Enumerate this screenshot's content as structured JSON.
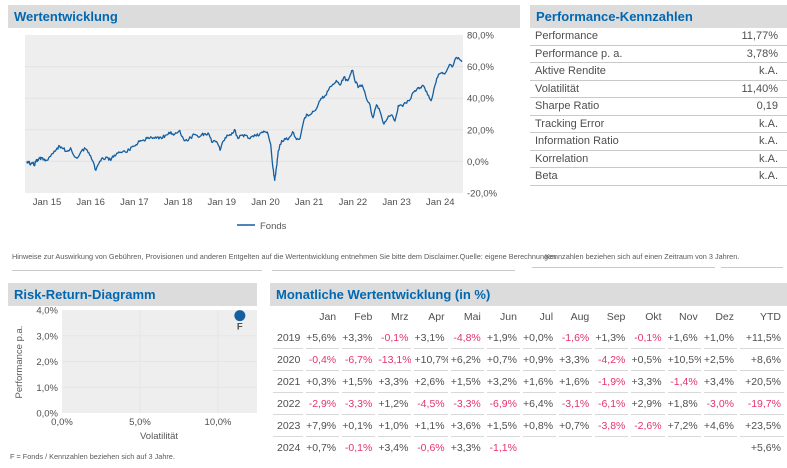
{
  "colors": {
    "accent_blue": "#0068b2",
    "line_blue": "#145fa0",
    "negative_red": "#e2336f",
    "text_gray": "#4f4f51",
    "header_bg": "#dcdcdd",
    "plot_bg": "#eeeeef",
    "grid": "#e2e2e3"
  },
  "panels": {
    "performance_chart": {
      "title": "Wertentwicklung",
      "legend_label": "Fonds",
      "disclaimer": "Hinweise zur Auswirkung von Gebühren, Provisionen und anderen Entgelten auf die Wertentwicklung entnehmen Sie bitte dem Disclaimer.",
      "source": "Quelle: eigene Berechnungen"
    },
    "kennzahlen": {
      "title": "Performance-Kennzahlen",
      "note": "Kennzahlen beziehen sich auf einen Zeitraum von 3 Jahren.",
      "rows": [
        {
          "label": "Performance",
          "value": "11,77%"
        },
        {
          "label": "Performance p. a.",
          "value": "3,78%"
        },
        {
          "label": "Aktive Rendite",
          "value": "k.A."
        },
        {
          "label": "Volatilität",
          "value": "11,40%"
        },
        {
          "label": "Sharpe Ratio",
          "value": "0,19"
        },
        {
          "label": "Tracking Error",
          "value": "k.A."
        },
        {
          "label": "Information Ratio",
          "value": "k.A."
        },
        {
          "label": "Korrelation",
          "value": "k.A."
        },
        {
          "label": "Beta",
          "value": "k.A."
        }
      ]
    },
    "risk_return": {
      "title": "Risk-Return-Diagramm",
      "footnote": "F = Fonds / Kennzahlen beziehen sich auf 3 Jahre."
    },
    "monthly": {
      "title": "Monatliche Wertentwicklung (in %)",
      "columns": [
        "",
        "Jan",
        "Feb",
        "Mrz",
        "Apr",
        "Mai",
        "Jun",
        "Jul",
        "Aug",
        "Sep",
        "Okt",
        "Nov",
        "Dez",
        "YTD"
      ],
      "rows": [
        {
          "year": "2019",
          "values": [
            "+5,6%",
            "+3,3%",
            "-0,1%",
            "+3,1%",
            "-4,8%",
            "+1,9%",
            "+0,0%",
            "-1,6%",
            "+1,3%",
            "-0,1%",
            "+1,6%",
            "+1,0%",
            "+11,5%"
          ]
        },
        {
          "year": "2020",
          "values": [
            "-0,4%",
            "-6,7%",
            "-13,1%",
            "+10,7%",
            "+6,2%",
            "+0,7%",
            "+0,9%",
            "+3,3%",
            "-4,2%",
            "+0,5%",
            "+10,5%",
            "+2,5%",
            "+8,6%"
          ]
        },
        {
          "year": "2021",
          "values": [
            "+0,3%",
            "+1,5%",
            "+3,3%",
            "+2,6%",
            "+1,5%",
            "+3,2%",
            "+1,6%",
            "+1,6%",
            "-1,9%",
            "+3,3%",
            "-1,4%",
            "+3,4%",
            "+20,5%"
          ]
        },
        {
          "year": "2022",
          "values": [
            "-2,9%",
            "-3,3%",
            "+1,2%",
            "-4,5%",
            "-3,3%",
            "-6,9%",
            "+6,4%",
            "-3,1%",
            "-6,1%",
            "+2,9%",
            "+1,8%",
            "-3,0%",
            "-19,7%"
          ]
        },
        {
          "year": "2023",
          "values": [
            "+7,9%",
            "+0,1%",
            "+1,0%",
            "+1,1%",
            "+3,6%",
            "+1,5%",
            "+0,8%",
            "+0,7%",
            "-3,8%",
            "-2,6%",
            "+7,2%",
            "+4,6%",
            "+23,5%"
          ]
        },
        {
          "year": "2024",
          "values": [
            "+0,7%",
            "-0,1%",
            "+3,4%",
            "-0,6%",
            "+3,3%",
            "-1,1%",
            "",
            "",
            "",
            "",
            "",
            "",
            "+5,6%"
          ]
        }
      ]
    }
  },
  "chart_data": [
    {
      "type": "line",
      "title": "Wertentwicklung",
      "xlabel": "",
      "ylabel": "",
      "legend_position": "bottom",
      "grid": true,
      "xlim": [
        2014.5,
        2024.58
      ],
      "ylim": [
        -20,
        80
      ],
      "y_ticks": [
        {
          "label": "80,0%",
          "v": 80
        },
        {
          "label": "60,0%",
          "v": 60
        },
        {
          "label": "40,0%",
          "v": 40
        },
        {
          "label": "20,0%",
          "v": 20
        },
        {
          "label": "0,0%",
          "v": 0
        },
        {
          "label": "-20,0%",
          "v": -20
        }
      ],
      "x_ticks": [
        {
          "label": "Jan 15",
          "t": 2015
        },
        {
          "label": "Jan 16",
          "t": 2016
        },
        {
          "label": "Jan 17",
          "t": 2017
        },
        {
          "label": "Jan 18",
          "t": 2018
        },
        {
          "label": "Jan 19",
          "t": 2019
        },
        {
          "label": "Jan 20",
          "t": 2020
        },
        {
          "label": "Jan 21",
          "t": 2021
        },
        {
          "label": "Jan 22",
          "t": 2022
        },
        {
          "label": "Jan 23",
          "t": 2023
        },
        {
          "label": "Jan 24",
          "t": 2024
        }
      ],
      "series": [
        {
          "name": "Fonds",
          "points": [
            [
              2014.54,
              0
            ],
            [
              2014.58,
              -0.8
            ],
            [
              2014.63,
              -1.8
            ],
            [
              2014.68,
              -0.5
            ],
            [
              2014.71,
              -2.8
            ],
            [
              2014.75,
              0.5
            ],
            [
              2014.79,
              1.2
            ],
            [
              2014.83,
              2.0
            ],
            [
              2014.88,
              2.3
            ],
            [
              2014.92,
              1.0
            ],
            [
              2014.96,
              0.3
            ],
            [
              2015.04,
              2.2
            ],
            [
              2015.12,
              5.0
            ],
            [
              2015.21,
              7.4
            ],
            [
              2015.29,
              9.6
            ],
            [
              2015.37,
              8.0
            ],
            [
              2015.46,
              6.4
            ],
            [
              2015.54,
              8.6
            ],
            [
              2015.62,
              3.4
            ],
            [
              2015.71,
              2.6
            ],
            [
              2015.79,
              6.6
            ],
            [
              2015.88,
              8.0
            ],
            [
              2015.96,
              5.4
            ],
            [
              2016.04,
              0.6
            ],
            [
              2016.12,
              -5.6
            ],
            [
              2016.21,
              0.2
            ],
            [
              2016.29,
              1.6
            ],
            [
              2016.37,
              2.6
            ],
            [
              2016.46,
              0.6
            ],
            [
              2016.54,
              4.0
            ],
            [
              2016.62,
              5.2
            ],
            [
              2016.71,
              5.6
            ],
            [
              2016.79,
              6.0
            ],
            [
              2016.88,
              7.2
            ],
            [
              2016.96,
              9.6
            ],
            [
              2017.04,
              10.6
            ],
            [
              2017.12,
              12.6
            ],
            [
              2017.21,
              13.6
            ],
            [
              2017.29,
              14.6
            ],
            [
              2017.37,
              15.6
            ],
            [
              2017.46,
              14.6
            ],
            [
              2017.54,
              15.6
            ],
            [
              2017.62,
              14.4
            ],
            [
              2017.71,
              16.6
            ],
            [
              2017.79,
              18.4
            ],
            [
              2017.88,
              17.4
            ],
            [
              2017.96,
              18.0
            ],
            [
              2018.04,
              19.6
            ],
            [
              2018.12,
              14.4
            ],
            [
              2018.21,
              13.0
            ],
            [
              2018.29,
              15.0
            ],
            [
              2018.37,
              17.0
            ],
            [
              2018.46,
              15.4
            ],
            [
              2018.54,
              17.0
            ],
            [
              2018.62,
              17.6
            ],
            [
              2018.71,
              17.0
            ],
            [
              2018.79,
              12.0
            ],
            [
              2018.88,
              12.6
            ],
            [
              2018.96,
              7.0
            ],
            [
              2019.04,
              13.0
            ],
            [
              2019.12,
              16.7
            ],
            [
              2019.21,
              16.6
            ],
            [
              2019.29,
              20.2
            ],
            [
              2019.37,
              14.4
            ],
            [
              2019.46,
              16.6
            ],
            [
              2019.54,
              16.6
            ],
            [
              2019.62,
              14.7
            ],
            [
              2019.71,
              16.2
            ],
            [
              2019.79,
              16.1
            ],
            [
              2019.88,
              18.0
            ],
            [
              2019.96,
              19.2
            ],
            [
              2020.04,
              18.7
            ],
            [
              2020.12,
              10.8
            ],
            [
              2020.17,
              -4.0
            ],
            [
              2020.21,
              -12.0
            ],
            [
              2020.25,
              -3.7
            ],
            [
              2020.29,
              6.6
            ],
            [
              2020.37,
              13.2
            ],
            [
              2020.46,
              14.0
            ],
            [
              2020.54,
              15.0
            ],
            [
              2020.62,
              18.8
            ],
            [
              2020.71,
              13.8
            ],
            [
              2020.79,
              14.4
            ],
            [
              2020.88,
              26.4
            ],
            [
              2020.96,
              29.6
            ],
            [
              2021.04,
              29.9
            ],
            [
              2021.12,
              31.9
            ],
            [
              2021.21,
              36.3
            ],
            [
              2021.29,
              39.8
            ],
            [
              2021.37,
              41.9
            ],
            [
              2021.46,
              46.4
            ],
            [
              2021.54,
              48.8
            ],
            [
              2021.62,
              51.2
            ],
            [
              2021.71,
              48.3
            ],
            [
              2021.79,
              53.2
            ],
            [
              2021.88,
              51.0
            ],
            [
              2021.96,
              56.2
            ],
            [
              2022.0,
              57.5
            ],
            [
              2022.04,
              51.7
            ],
            [
              2022.12,
              46.7
            ],
            [
              2022.21,
              48.4
            ],
            [
              2022.29,
              41.8
            ],
            [
              2022.37,
              37.1
            ],
            [
              2022.46,
              27.6
            ],
            [
              2022.54,
              35.8
            ],
            [
              2022.62,
              31.6
            ],
            [
              2022.71,
              23.6
            ],
            [
              2022.79,
              27.1
            ],
            [
              2022.88,
              29.4
            ],
            [
              2022.96,
              25.5
            ],
            [
              2023.04,
              35.4
            ],
            [
              2023.12,
              35.5
            ],
            [
              2023.21,
              36.9
            ],
            [
              2023.29,
              38.4
            ],
            [
              2023.37,
              43.4
            ],
            [
              2023.46,
              45.5
            ],
            [
              2023.54,
              46.7
            ],
            [
              2023.62,
              47.7
            ],
            [
              2023.71,
              42.1
            ],
            [
              2023.79,
              38.4
            ],
            [
              2023.88,
              48.4
            ],
            [
              2023.96,
              55.2
            ],
            [
              2024.04,
              56.3
            ],
            [
              2024.12,
              56.1
            ],
            [
              2024.21,
              61.4
            ],
            [
              2024.29,
              60.5
            ],
            [
              2024.37,
              65.8
            ],
            [
              2024.46,
              64.0
            ],
            [
              2024.5,
              63.2
            ]
          ]
        }
      ]
    },
    {
      "type": "scatter",
      "title": "Risk-Return-Diagramm",
      "xlabel": "Volatilität",
      "ylabel": "Performance p.a.",
      "xlim": [
        0,
        12.5
      ],
      "ylim": [
        0,
        4
      ],
      "grid": true,
      "y_ticks": [
        {
          "label": "4,0%",
          "v": 4
        },
        {
          "label": "3,0%",
          "v": 3
        },
        {
          "label": "2,0%",
          "v": 2
        },
        {
          "label": "1,0%",
          "v": 1
        },
        {
          "label": "0,0%",
          "v": 0
        }
      ],
      "x_ticks": [
        {
          "label": "0,0%",
          "v": 0
        },
        {
          "label": "5,0%",
          "v": 5
        },
        {
          "label": "10,0%",
          "v": 10
        }
      ],
      "points": [
        {
          "label": "F",
          "x": 11.4,
          "y": 3.78
        }
      ]
    }
  ]
}
